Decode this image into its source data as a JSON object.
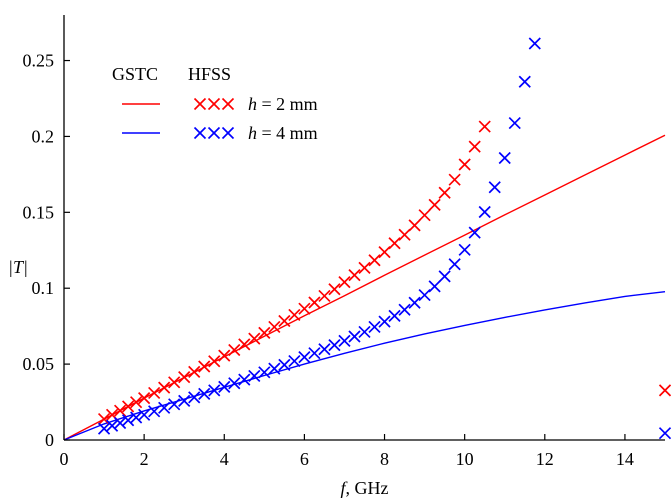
{
  "chart_data": {
    "type": "line",
    "xlabel_italic": "f",
    "xlabel_rest": ", GHz",
    "ylabel": "|T|",
    "xlim": [
      0,
      15
    ],
    "ylim": [
      0,
      0.28
    ],
    "xticks": [
      0,
      2,
      4,
      6,
      8,
      10,
      12,
      14
    ],
    "xtick_labels": [
      "0",
      "2",
      "4",
      "6",
      "8",
      "10",
      "12",
      "14"
    ],
    "yticks": [
      0,
      0.05,
      0.1,
      0.15,
      0.2,
      0.25
    ],
    "ytick_labels": [
      "0",
      "0.05",
      "0.1",
      "0.15",
      "0.2",
      "0.25"
    ],
    "grid": false,
    "legend": {
      "placement": "top-left",
      "header_gstc": "GSTC",
      "header_hfss": "HFSS",
      "entries": [
        {
          "h": "h",
          "value": " = 2 mm",
          "color": "#ff0000"
        },
        {
          "h": "h",
          "value": " = 4 mm",
          "color": "#0000ff"
        }
      ]
    },
    "series": [
      {
        "method": "GSTC",
        "h_mm": 2,
        "kind": "line",
        "color": "#ff0000",
        "x": [
          0,
          1,
          2,
          3,
          4,
          5,
          6,
          7,
          8,
          9,
          10,
          11,
          12,
          13,
          14,
          15
        ],
        "y": [
          0,
          0.0138,
          0.0276,
          0.0412,
          0.0548,
          0.0683,
          0.0818,
          0.0951,
          0.1085,
          0.1218,
          0.135,
          0.1483,
          0.1614,
          0.1746,
          0.1877,
          0.2008
        ]
      },
      {
        "method": "GSTC",
        "h_mm": 4,
        "kind": "line",
        "color": "#0000ff",
        "x": [
          0,
          1,
          2,
          3,
          4,
          5,
          6,
          7,
          8,
          9,
          10,
          11,
          12,
          13,
          14,
          15
        ],
        "y": [
          0,
          0.0106,
          0.0192,
          0.0269,
          0.0347,
          0.0425,
          0.05,
          0.0571,
          0.0638,
          0.0699,
          0.0755,
          0.0808,
          0.0857,
          0.0903,
          0.0946,
          0.0977
        ]
      },
      {
        "method": "HFSS",
        "h_mm": 2,
        "kind": "markers",
        "color": "#ff0000",
        "x": [
          1,
          1.2,
          1.4,
          1.6,
          1.8,
          2,
          2.25,
          2.5,
          2.75,
          3,
          3.25,
          3.5,
          3.75,
          4,
          4.25,
          4.5,
          4.75,
          5,
          5.25,
          5.5,
          5.75,
          6,
          6.25,
          6.5,
          6.75,
          7,
          7.25,
          7.5,
          7.75,
          8,
          8.25,
          8.5,
          8.75,
          9,
          9.25,
          9.5,
          9.75,
          10,
          10.25,
          10.5,
          15
        ],
        "y": [
          0.0138,
          0.0166,
          0.0193,
          0.0221,
          0.0249,
          0.0276,
          0.031,
          0.0345,
          0.038,
          0.0414,
          0.0449,
          0.0484,
          0.0519,
          0.0556,
          0.0593,
          0.063,
          0.0668,
          0.0706,
          0.0745,
          0.0784,
          0.0824,
          0.0865,
          0.0906,
          0.0949,
          0.0993,
          0.104,
          0.1086,
          0.1134,
          0.1184,
          0.1238,
          0.1296,
          0.1352,
          0.1414,
          0.1481,
          0.1549,
          0.1629,
          0.1715,
          0.1815,
          0.1933,
          0.2065,
          0.0327
        ]
      },
      {
        "method": "HFSS",
        "h_mm": 4,
        "kind": "markers",
        "color": "#0000ff",
        "x": [
          1,
          1.2,
          1.4,
          1.6,
          1.8,
          2,
          2.25,
          2.5,
          2.75,
          3,
          3.25,
          3.5,
          3.75,
          4,
          4.25,
          4.5,
          4.75,
          5,
          5.25,
          5.5,
          5.75,
          6,
          6.25,
          6.5,
          6.75,
          7,
          7.25,
          7.5,
          7.75,
          8,
          8.25,
          8.5,
          8.75,
          9,
          9.25,
          9.5,
          9.75,
          10,
          10.25,
          10.5,
          10.75,
          11,
          11.25,
          11.5,
          11.75,
          15
        ],
        "y": [
          0.0075,
          0.0094,
          0.0112,
          0.013,
          0.0148,
          0.0166,
          0.0189,
          0.0212,
          0.0235,
          0.0258,
          0.0281,
          0.0304,
          0.0327,
          0.035,
          0.0374,
          0.0398,
          0.0422,
          0.0446,
          0.047,
          0.0495,
          0.052,
          0.0546,
          0.0572,
          0.0598,
          0.0625,
          0.0653,
          0.0682,
          0.0712,
          0.0745,
          0.078,
          0.0818,
          0.0858,
          0.0904,
          0.0955,
          0.1012,
          0.1078,
          0.1158,
          0.1253,
          0.1366,
          0.1502,
          0.1665,
          0.1858,
          0.2088,
          0.236,
          0.2612,
          0.0045
        ]
      }
    ]
  }
}
